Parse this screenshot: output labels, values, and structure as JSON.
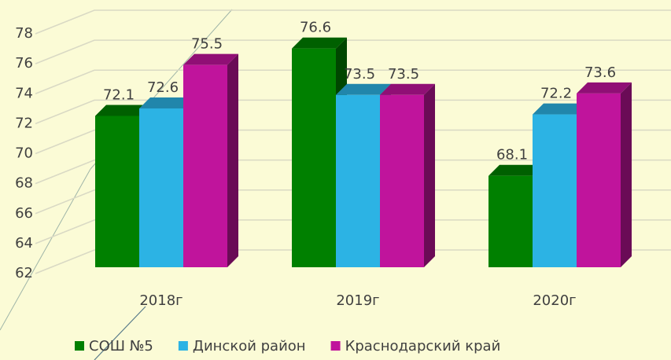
{
  "chart_data": {
    "type": "bar3d",
    "categories": [
      "2018г",
      "2019г",
      "2020г"
    ],
    "series": [
      {
        "name": "СОШ №5",
        "color": "#008000",
        "values": [
          72.1,
          76.6,
          68.1
        ]
      },
      {
        "name": "Динской район",
        "color": "#2cb3e4",
        "values": [
          72.6,
          73.5,
          72.2
        ]
      },
      {
        "name": "Краснодарский край",
        "color": "#c0149c",
        "values": [
          75.5,
          73.5,
          73.6
        ]
      }
    ],
    "ylim": [
      62,
      78
    ],
    "yticks": [
      62,
      64,
      66,
      68,
      70,
      72,
      74,
      76,
      78
    ],
    "grid": true,
    "legend": "bottom"
  }
}
